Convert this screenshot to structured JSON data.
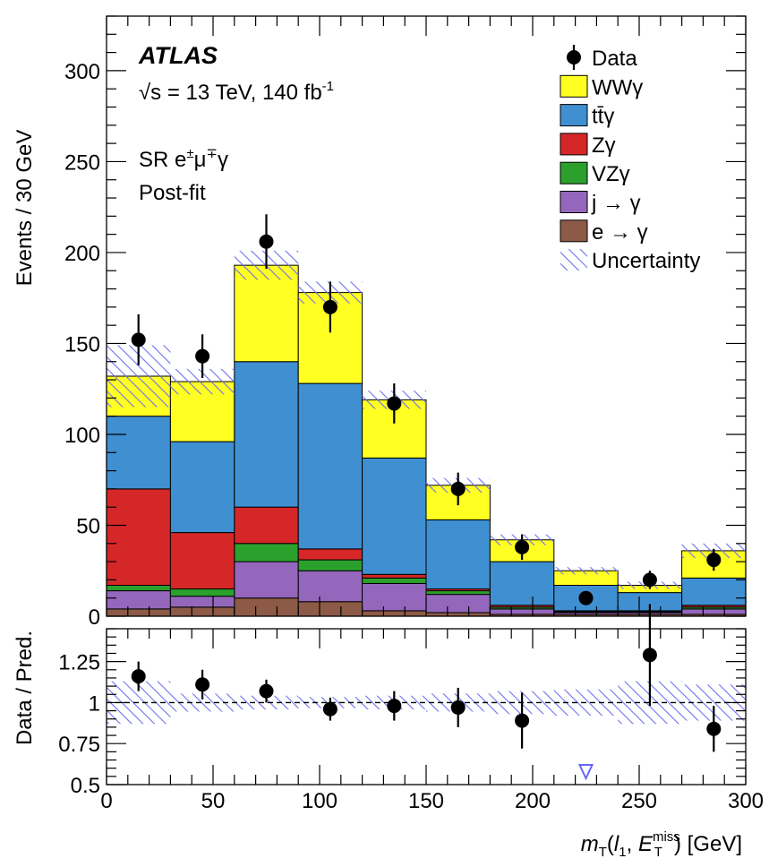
{
  "chart_data": [
    {
      "type": "bar",
      "subtype": "stacked-histogram",
      "x_edges": [
        0,
        30,
        60,
        90,
        120,
        150,
        180,
        210,
        240,
        270,
        300
      ],
      "ylim": [
        0,
        330
      ],
      "ylabel": "Events / 30 GeV",
      "y_ticks": [
        0,
        50,
        100,
        150,
        200,
        250,
        300
      ],
      "annotations": {
        "experiment": "ATLAS",
        "energy": "√s = 13 TeV, 140 fb-1",
        "energy_main": "√s = 13 TeV, 140 fb",
        "energy_sup": "-1",
        "region": "SR e±μ∓γ",
        "region_main": "SR e",
        "region_sup1": "±",
        "region_mu": "μ",
        "region_sup2": "∓",
        "region_gamma": "γ",
        "fit": "Post-fit"
      },
      "series": [
        {
          "name": "e → γ",
          "color": "#8c5a46",
          "values": [
            4,
            5,
            10,
            8,
            3,
            2,
            1,
            1,
            1,
            1
          ]
        },
        {
          "name": "j → γ",
          "color": "#9467bd",
          "values": [
            10,
            6,
            20,
            17,
            15,
            10,
            3,
            1,
            1,
            3
          ]
        },
        {
          "name": "VZγ",
          "color": "#2ca02c",
          "values": [
            3,
            4,
            10,
            6,
            3,
            2,
            1,
            0.5,
            0.5,
            1
          ]
        },
        {
          "name": "Zγ",
          "color": "#d62728",
          "values": [
            53,
            31,
            20,
            6,
            2,
            1,
            1,
            0.5,
            0.5,
            1
          ]
        },
        {
          "name": "tt̄γ",
          "color": "#3f8fd1",
          "values": [
            40,
            50,
            80,
            91,
            64,
            38,
            24,
            14,
            10,
            15
          ]
        },
        {
          "name": "WWγ",
          "color": "#ffff22",
          "values": [
            22,
            33,
            53,
            50,
            32,
            19,
            12,
            8,
            4,
            15
          ]
        }
      ],
      "total_uncertainty": [
        17,
        7,
        8,
        6,
        5,
        4,
        3,
        2,
        2,
        4
      ],
      "data": {
        "name": "Data",
        "x": [
          15,
          45,
          75,
          105,
          135,
          165,
          195,
          225,
          255,
          285
        ],
        "y": [
          152,
          143,
          206,
          170,
          117,
          70,
          38,
          10,
          20,
          31
        ],
        "err": [
          14,
          12,
          15,
          14,
          11,
          9,
          7,
          3,
          5,
          6
        ]
      },
      "legend": [
        {
          "label": "Data",
          "kind": "marker"
        },
        {
          "label": "WWγ",
          "kind": "fill",
          "color": "#ffff22"
        },
        {
          "label": "tt̄γ",
          "kind": "fill",
          "color": "#3f8fd1"
        },
        {
          "label": "Zγ",
          "kind": "fill",
          "color": "#d62728"
        },
        {
          "label": "VZγ",
          "kind": "fill",
          "color": "#2ca02c"
        },
        {
          "label": "j → γ",
          "kind": "fill",
          "color": "#9467bd"
        },
        {
          "label": "e → γ",
          "kind": "fill",
          "color": "#8c5a46"
        },
        {
          "label": "Uncertainty",
          "kind": "hatch"
        }
      ],
      "legend_position": "top-right"
    },
    {
      "type": "scatter",
      "subtype": "ratio-panel",
      "ylabel": "Data / Pred.",
      "xlabel": "mT(l1, ETmiss) [GeV]",
      "xlabel_parts": {
        "m": "m",
        "t1": "T",
        "open": "(",
        "l": "l",
        "one": "1",
        "comma": ", ",
        "e": "E",
        "sup": "miss",
        "t2": "T",
        "close": ") [GeV]"
      },
      "xlim": [
        0,
        300
      ],
      "ylim": [
        0.5,
        1.45
      ],
      "x_ticks": [
        0,
        50,
        100,
        150,
        200,
        250,
        300
      ],
      "y_ticks": [
        0.5,
        0.75,
        1,
        1.25
      ],
      "y_tick_labels": [
        "0.5",
        "0.75",
        "1",
        "1.25"
      ],
      "x_tick_labels": [
        "0",
        "50",
        "100",
        "150",
        "200",
        "250",
        "300"
      ],
      "reference_line": 1,
      "ratio_uncertainty": [
        0.13,
        0.055,
        0.042,
        0.034,
        0.042,
        0.055,
        0.07,
        0.08,
        0.13,
        0.11
      ],
      "x": [
        15,
        45,
        75,
        105,
        135,
        165,
        195,
        225,
        255,
        285
      ],
      "y": [
        1.16,
        1.11,
        1.07,
        0.96,
        0.98,
        0.97,
        0.89,
        null,
        1.29,
        0.84
      ],
      "err": [
        0.09,
        0.09,
        0.07,
        0.07,
        0.09,
        0.12,
        0.17,
        null,
        0.31,
        0.14
      ],
      "offscale_marker": {
        "x": 225,
        "direction": "down",
        "color": "#6666ff"
      }
    }
  ]
}
